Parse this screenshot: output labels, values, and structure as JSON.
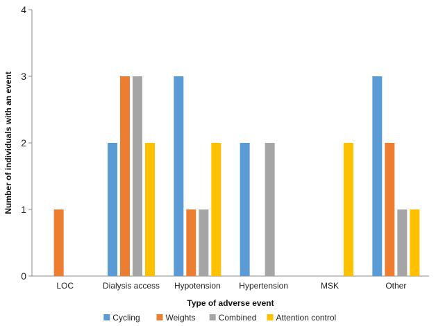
{
  "chart_data": {
    "type": "bar",
    "title": "",
    "xlabel": "Type of adverse event",
    "ylabel": "Number of individuals with an event",
    "categories": [
      "LOC",
      "Dialysis access",
      "Hypotension",
      "Hypertension",
      "MSK",
      "Other"
    ],
    "series": [
      {
        "name": "Cycling",
        "color": "#5B9BD5",
        "values": [
          0,
          2,
          3,
          2,
          0,
          3
        ]
      },
      {
        "name": "Weights",
        "color": "#ED7D31",
        "values": [
          1,
          3,
          1,
          0,
          0,
          2
        ]
      },
      {
        "name": "Combined",
        "color": "#A5A5A5",
        "values": [
          0,
          3,
          1,
          2,
          0,
          1
        ]
      },
      {
        "name": "Attention control",
        "color": "#FFC000",
        "values": [
          0,
          2,
          2,
          0,
          2,
          1
        ]
      }
    ],
    "ylim": [
      0,
      4
    ],
    "yticks": [
      0,
      1,
      2,
      3,
      4
    ],
    "grid": false,
    "legend_position": "bottom"
  }
}
